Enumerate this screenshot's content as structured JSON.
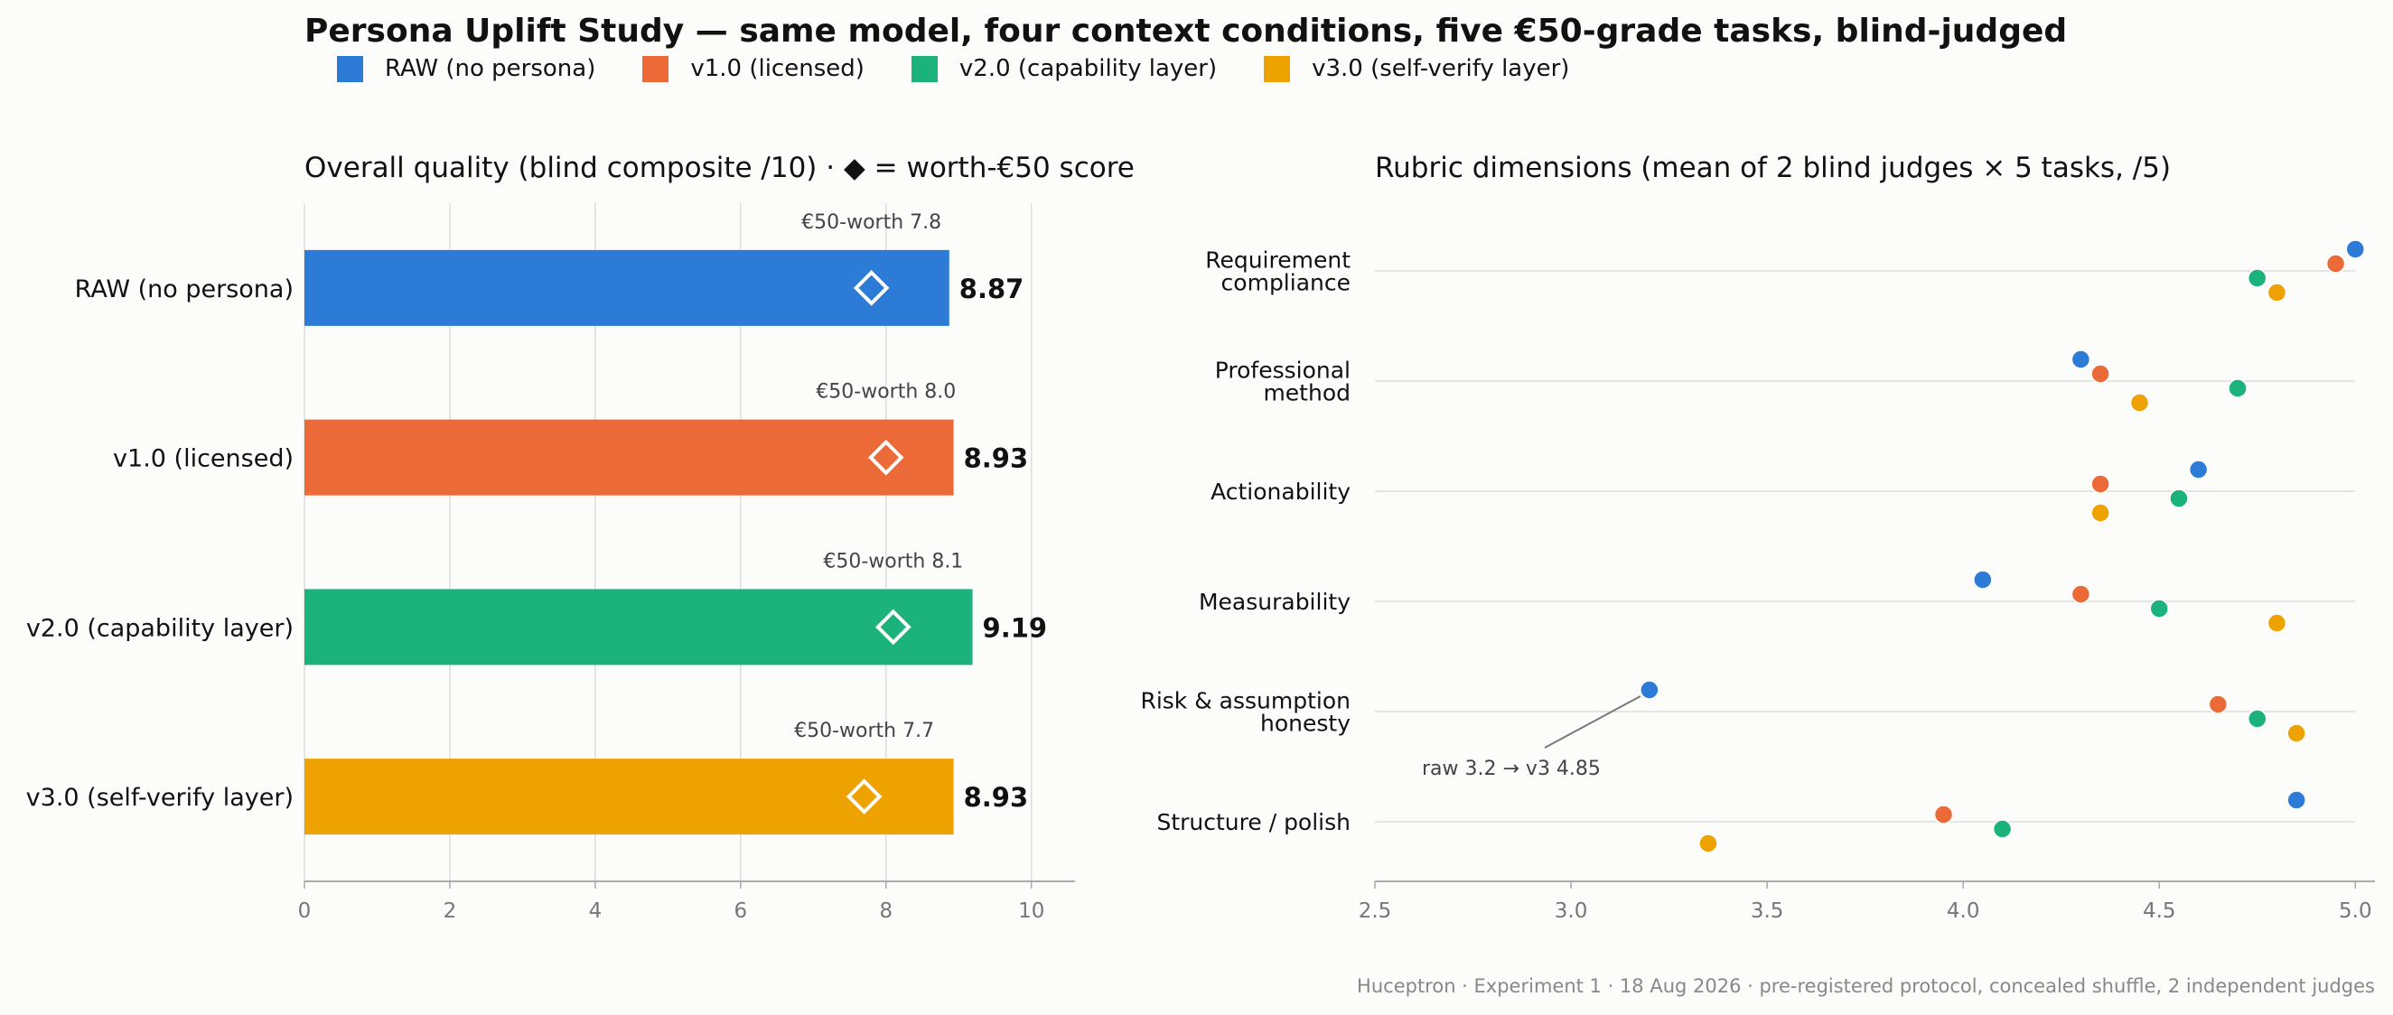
{
  "title": "Persona Uplift Study — same model, four context conditions, five €50-grade tasks, blind-judged",
  "footer": "Huceptron · Experiment 1 · 18 Aug 2026 · pre-registered protocol, concealed shuffle, 2 independent judges",
  "legend": [
    {
      "label": "RAW (no persona)",
      "color": "#2c7bd6"
    },
    {
      "label": "v1.0 (licensed)",
      "color": "#ec6a37"
    },
    {
      "label": "v2.0 (capability layer)",
      "color": "#1cb27c"
    },
    {
      "label": "v3.0 (self-verify layer)",
      "color": "#eea200"
    }
  ],
  "chart_data": [
    {
      "type": "bar",
      "orientation": "horizontal",
      "title": "Overall quality (blind composite /10)  ·  ◆ = worth-€50 score",
      "categories": [
        "RAW (no persona)",
        "v1.0 (licensed)",
        "v2.0 (capability layer)",
        "v3.0 (self-verify layer)"
      ],
      "values": [
        8.87,
        8.93,
        9.19,
        8.93
      ],
      "value_labels": [
        "8.87",
        "8.93",
        "9.19",
        "8.93"
      ],
      "worth_scores": [
        7.8,
        8.0,
        8.1,
        7.7
      ],
      "worth_labels": [
        "€50-worth 7.8",
        "€50-worth 8.0",
        "€50-worth 8.1",
        "€50-worth 7.7"
      ],
      "colors": [
        "#2c7bd6",
        "#ec6a37",
        "#1cb27c",
        "#eea200"
      ],
      "xlim": [
        0,
        10.6
      ],
      "xticks": [
        0,
        2,
        4,
        6,
        8,
        10
      ],
      "grid": "vertical"
    },
    {
      "type": "scatter",
      "title": "Rubric dimensions (mean of 2 blind judges × 5 tasks, /5)",
      "categories": [
        [
          "Requirement",
          "compliance"
        ],
        [
          "Professional",
          "method"
        ],
        [
          "Actionability"
        ],
        [
          "Measurability"
        ],
        [
          "Risk & assumption",
          "honesty"
        ],
        [
          "Structure / polish"
        ]
      ],
      "series": [
        {
          "name": "RAW (no persona)",
          "color": "#2c7bd6",
          "values": [
            5.0,
            4.3,
            4.6,
            4.05,
            3.2,
            4.85
          ]
        },
        {
          "name": "v1.0 (licensed)",
          "color": "#ec6a37",
          "values": [
            4.95,
            4.35,
            4.35,
            4.3,
            4.65,
            3.95
          ]
        },
        {
          "name": "v2.0 (capability layer)",
          "color": "#1cb27c",
          "values": [
            4.75,
            4.7,
            4.55,
            4.5,
            4.75,
            4.1
          ]
        },
        {
          "name": "v3.0 (self-verify layer)",
          "color": "#eea200",
          "values": [
            4.8,
            4.45,
            4.35,
            4.8,
            4.85,
            3.35
          ]
        }
      ],
      "xlim": [
        2.5,
        5.05
      ],
      "xticks": [
        2.5,
        3.0,
        3.5,
        4.0,
        4.5,
        5.0
      ],
      "xtick_labels": [
        "2.5",
        "3.0",
        "3.5",
        "4.0",
        "4.5",
        "5.0"
      ],
      "grid": "horizontal",
      "annotation": {
        "text": "raw 3.2 → v3 4.85",
        "category_index": 4,
        "series_index": 0
      }
    }
  ]
}
